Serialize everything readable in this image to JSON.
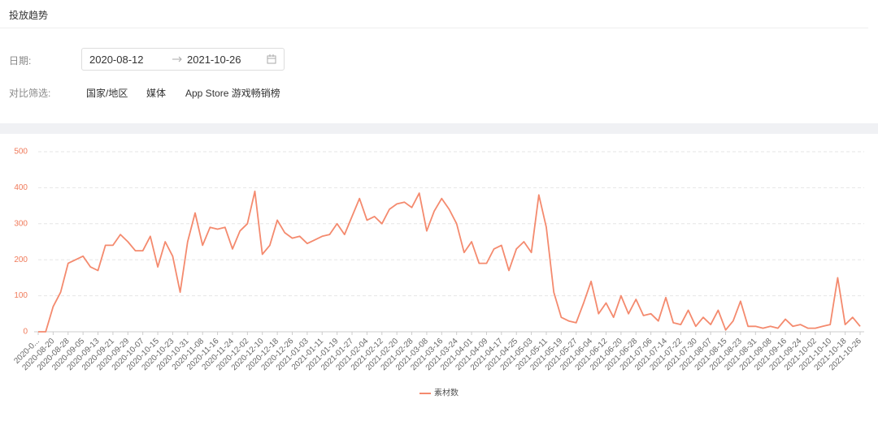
{
  "header": {
    "title": "投放趋势"
  },
  "filters": {
    "date_label": "日期:",
    "start_date": "2020-08-12",
    "end_date": "2021-10-26",
    "compare_label": "对比筛选:",
    "compare_options": [
      "国家/地区",
      "媒体",
      "App Store 游戏畅销榜"
    ]
  },
  "chart_data": {
    "type": "line",
    "categories": [
      "2020-0...",
      null,
      "2020-08-20",
      null,
      "2020-08-28",
      null,
      "2020-09-05",
      null,
      "2020-09-13",
      null,
      "2020-09-21",
      null,
      "2020-09-29",
      null,
      "2020-10-07",
      null,
      "2020-10-15",
      null,
      "2020-10-23",
      null,
      "2020-10-31",
      null,
      "2020-11-08",
      null,
      "2020-11-16",
      null,
      "2020-11-24",
      null,
      "2020-12-02",
      null,
      "2020-12-10",
      null,
      "2020-12-18",
      null,
      "2020-12-26",
      null,
      "2021-01-03",
      null,
      "2021-01-11",
      null,
      "2021-01-19",
      null,
      "2021-01-27",
      null,
      "2021-02-04",
      null,
      "2021-02-12",
      null,
      "2021-02-20",
      null,
      "2021-02-28",
      null,
      "2021-03-08",
      null,
      "2021-03-16",
      null,
      "2021-03-24",
      null,
      "2021-04-01",
      null,
      "2021-04-09",
      null,
      "2021-04-17",
      null,
      "2021-04-25",
      null,
      "2021-05-03",
      null,
      "2021-05-11",
      null,
      "2021-05-19",
      null,
      "2021-05-27",
      null,
      "2021-06-04",
      null,
      "2021-06-12",
      null,
      "2021-06-20",
      null,
      "2021-06-28",
      null,
      "2021-07-06",
      null,
      "2021-07-14",
      null,
      "2021-07-22",
      null,
      "2021-07-30",
      null,
      "2021-08-07",
      null,
      "2021-08-15",
      null,
      "2021-08-23",
      null,
      "2021-08-31",
      null,
      "2021-09-08",
      null,
      "2021-09-16",
      null,
      "2021-09-24",
      null,
      "2021-10-02",
      null,
      "2021-10-10",
      null,
      "2021-10-18",
      null,
      "2021-10-26"
    ],
    "series": [
      {
        "name": "素材数",
        "color": "#f48a6e",
        "values": [
          0,
          0,
          70,
          110,
          190,
          200,
          210,
          180,
          170,
          240,
          240,
          270,
          250,
          225,
          225,
          265,
          180,
          250,
          210,
          110,
          250,
          330,
          240,
          290,
          285,
          290,
          230,
          280,
          300,
          390,
          215,
          240,
          310,
          275,
          260,
          265,
          245,
          255,
          265,
          270,
          300,
          270,
          320,
          370,
          310,
          320,
          300,
          340,
          355,
          360,
          345,
          385,
          280,
          335,
          370,
          340,
          300,
          220,
          250,
          190,
          190,
          230,
          240,
          170,
          230,
          250,
          220,
          380,
          290,
          110,
          40,
          30,
          25,
          80,
          140,
          50,
          80,
          40,
          100,
          50,
          90,
          45,
          50,
          30,
          95,
          25,
          20,
          60,
          15,
          40,
          20,
          60,
          5,
          30,
          85,
          15,
          15,
          10,
          15,
          10,
          35,
          15,
          20,
          10,
          10,
          15,
          20,
          150,
          20,
          40,
          15
        ]
      }
    ],
    "ylim": [
      0,
      500
    ],
    "yticks": [
      0,
      100,
      200,
      300,
      400,
      500
    ],
    "grid": true,
    "legend": "bottom"
  }
}
